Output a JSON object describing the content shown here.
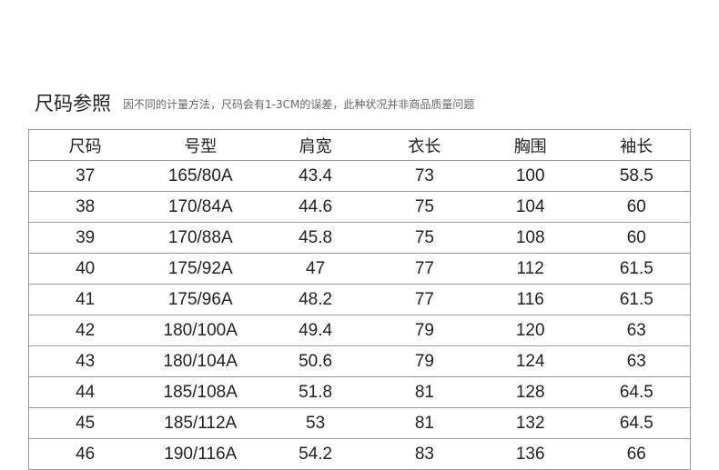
{
  "title": "尺码参照",
  "note": "因不同的计量方法，尺码会有1-3CM的误差，此种状况并非商品质量问题",
  "headers": [
    "尺码",
    "号型",
    "肩宽",
    "衣长",
    "胸围",
    "袖长"
  ],
  "rows": [
    [
      "37",
      "165/80A",
      "43.4",
      "73",
      "100",
      "58.5"
    ],
    [
      "38",
      "170/84A",
      "44.6",
      "75",
      "104",
      "60"
    ],
    [
      "39",
      "170/88A",
      "45.8",
      "75",
      "108",
      "60"
    ],
    [
      "40",
      "175/92A",
      "47",
      "77",
      "112",
      "61.5"
    ],
    [
      "41",
      "175/96A",
      "48.2",
      "77",
      "116",
      "61.5"
    ],
    [
      "42",
      "180/100A",
      "49.4",
      "79",
      "120",
      "63"
    ],
    [
      "43",
      "180/104A",
      "50.6",
      "79",
      "124",
      "63"
    ],
    [
      "44",
      "185/108A",
      "51.8",
      "81",
      "128",
      "64.5"
    ],
    [
      "45",
      "185/112A",
      "53",
      "81",
      "132",
      "64.5"
    ],
    [
      "46",
      "190/116A",
      "54.2",
      "83",
      "136",
      "66"
    ]
  ]
}
